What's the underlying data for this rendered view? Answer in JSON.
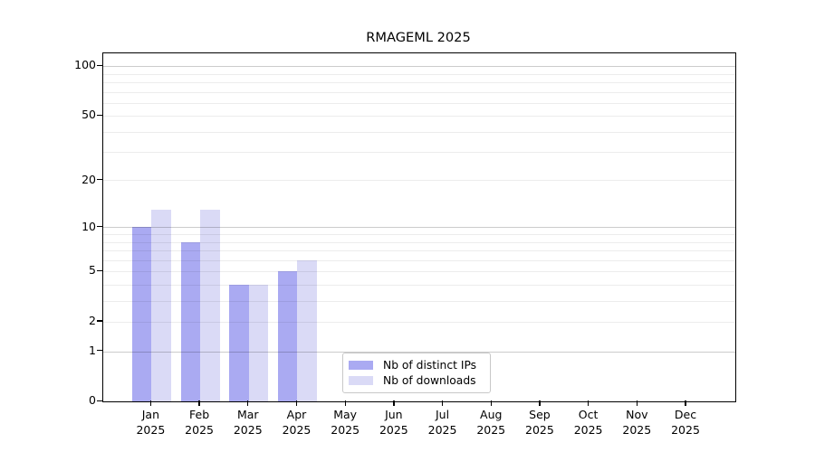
{
  "chart_data": {
    "type": "bar",
    "title": "RMAGEML 2025",
    "categories": [
      "Jan 2025",
      "Feb 2025",
      "Mar 2025",
      "Apr 2025",
      "May 2025",
      "Jun 2025",
      "Jul 2025",
      "Aug 2025",
      "Sep 2025",
      "Oct 2025",
      "Nov 2025",
      "Dec 2025"
    ],
    "months": [
      "Jan",
      "Feb",
      "Mar",
      "Apr",
      "May",
      "Jun",
      "Jul",
      "Aug",
      "Sep",
      "Oct",
      "Nov",
      "Dec"
    ],
    "year": "2025",
    "series": [
      {
        "name": "Nb of distinct IPs",
        "color": "#aaaaf2",
        "values": [
          10,
          8,
          4,
          5,
          0,
          0,
          0,
          0,
          0,
          0,
          0,
          0
        ]
      },
      {
        "name": "Nb of downloads",
        "color": "#dadaf6",
        "values": [
          13,
          13,
          4,
          6,
          0,
          0,
          0,
          0,
          0,
          0,
          0,
          0
        ]
      }
    ],
    "xlabel": "",
    "ylabel": "",
    "yscale": "log1p",
    "ylim": [
      0,
      120
    ],
    "yticks": [
      0,
      1,
      2,
      5,
      10,
      20,
      50,
      100
    ],
    "grid": {
      "minor_values": [
        2,
        3,
        4,
        5,
        6,
        7,
        8,
        9,
        20,
        30,
        40,
        50,
        60,
        70,
        80,
        90
      ],
      "major_values": [
        1,
        10,
        100
      ],
      "minor_color": "rgba(0,0,0,0.075)",
      "major_color": "rgba(0,0,0,0.2)"
    },
    "legend_location": "lower center"
  }
}
